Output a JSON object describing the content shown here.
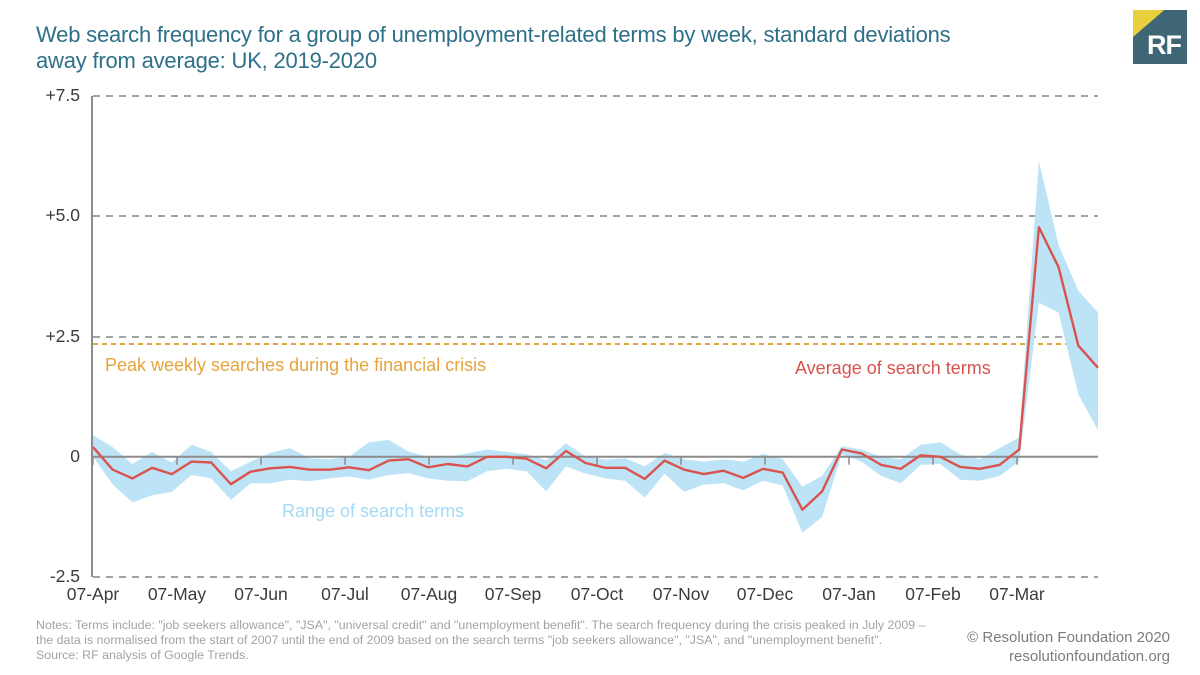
{
  "header": {
    "title_line1": "Web search frequency for a group of unemployment-related terms by week, standard deviations",
    "title_line2": "away from average: UK, 2019-2020",
    "logo_text": "RF"
  },
  "colors": {
    "title_teal": "#2f7089",
    "line_red": "#d9534f",
    "band_blue": "#bde4f6",
    "range_text_blue": "#a4daf3",
    "reference_orange": "#e8a33a",
    "grid_gray": "#a3a3a3",
    "axis_gray": "#8c8c8c",
    "logo_yellow": "#e9cf3d",
    "logo_teal": "#3f6675"
  },
  "annotations": {
    "peak_line_label": "Peak weekly searches during the financial crisis",
    "average_label": "Average of search terms",
    "range_label": "Range of search terms"
  },
  "footer": {
    "notes": "Notes: Terms include: \"job seekers allowance\", \"JSA\", \"universal credit\" and \"unemployment benefit\". The search frequency during the crisis peaked in July 2009 – the data is normalised from the start of 2007 until the end of 2009 based on the search terms \"job seekers allowance\", \"JSA\", and \"unemployment benefit\".",
    "source": "Source: RF analysis of Google Trends.",
    "copyright": "© Resolution Foundation 2020",
    "website": "resolutionfoundation.org"
  },
  "chart_data": {
    "type": "line",
    "title": "Web search frequency for a group of unemployment-related terms by week, standard deviations away from average: UK, 2019-2020",
    "xlabel": "",
    "ylabel": "Standard deviations away from average",
    "ylim": [
      -2.5,
      7.5
    ],
    "grid": "horizontal dashed",
    "legend_position": "annotated in-chart",
    "y_ticks": [
      {
        "value": 7.5,
        "label": "+7.5"
      },
      {
        "value": 5.0,
        "label": "+5.0"
      },
      {
        "value": 2.5,
        "label": "+2.5"
      },
      {
        "value": 0,
        "label": "0"
      },
      {
        "value": -2.5,
        "label": "-2.5"
      }
    ],
    "x_tick_labels": [
      "07-Apr",
      "07-May",
      "07-Jun",
      "07-Jul",
      "07-Aug",
      "07-Sep",
      "07-Oct",
      "07-Nov",
      "07-Dec",
      "07-Jan",
      "07-Feb",
      "07-Mar"
    ],
    "reference_line": {
      "value": 2.35,
      "label": "Peak weekly searches during the financial crisis"
    },
    "series": [
      {
        "name": "Average of search terms",
        "type": "line",
        "values": [
          0.2,
          -0.27,
          -0.45,
          -0.23,
          -0.36,
          -0.1,
          -0.12,
          -0.57,
          -0.31,
          -0.24,
          -0.21,
          -0.27,
          -0.27,
          -0.22,
          -0.28,
          -0.08,
          -0.05,
          -0.22,
          -0.15,
          -0.2,
          0.0,
          0.0,
          -0.04,
          -0.24,
          0.12,
          -0.13,
          -0.23,
          -0.23,
          -0.46,
          -0.08,
          -0.27,
          -0.36,
          -0.29,
          -0.44,
          -0.25,
          -0.33,
          -1.1,
          -0.72,
          0.15,
          0.07,
          -0.17,
          -0.25,
          0.03,
          0.0,
          -0.21,
          -0.25,
          -0.17,
          0.15,
          4.77,
          3.94,
          2.31,
          1.85
        ]
      },
      {
        "name": "Range of search terms",
        "type": "band",
        "upper": [
          0.45,
          0.2,
          -0.15,
          0.1,
          -0.12,
          0.25,
          0.1,
          -0.3,
          -0.1,
          0.08,
          0.18,
          -0.03,
          -0.05,
          0.0,
          0.3,
          0.35,
          0.11,
          0.0,
          0.0,
          0.07,
          0.15,
          0.1,
          0.05,
          -0.07,
          0.28,
          0.0,
          -0.06,
          -0.03,
          -0.2,
          0.08,
          -0.05,
          -0.1,
          -0.05,
          -0.1,
          0.06,
          -0.05,
          -0.62,
          -0.4,
          0.22,
          0.15,
          0.0,
          -0.05,
          0.25,
          0.3,
          0.05,
          -0.05,
          0.18,
          0.4,
          6.15,
          4.4,
          3.45,
          3.0
        ],
        "lower": [
          0.0,
          -0.58,
          -0.95,
          -0.8,
          -0.73,
          -0.38,
          -0.45,
          -0.9,
          -0.55,
          -0.55,
          -0.48,
          -0.51,
          -0.45,
          -0.41,
          -0.48,
          -0.38,
          -0.34,
          -0.45,
          -0.5,
          -0.51,
          -0.3,
          -0.25,
          -0.3,
          -0.72,
          -0.2,
          -0.35,
          -0.45,
          -0.5,
          -0.85,
          -0.35,
          -0.73,
          -0.58,
          -0.55,
          -0.7,
          -0.5,
          -0.6,
          -1.58,
          -1.25,
          0.05,
          -0.1,
          -0.4,
          -0.55,
          -0.17,
          -0.15,
          -0.48,
          -0.5,
          -0.4,
          -0.1,
          3.2,
          3.0,
          1.3,
          0.55
        ]
      }
    ]
  }
}
